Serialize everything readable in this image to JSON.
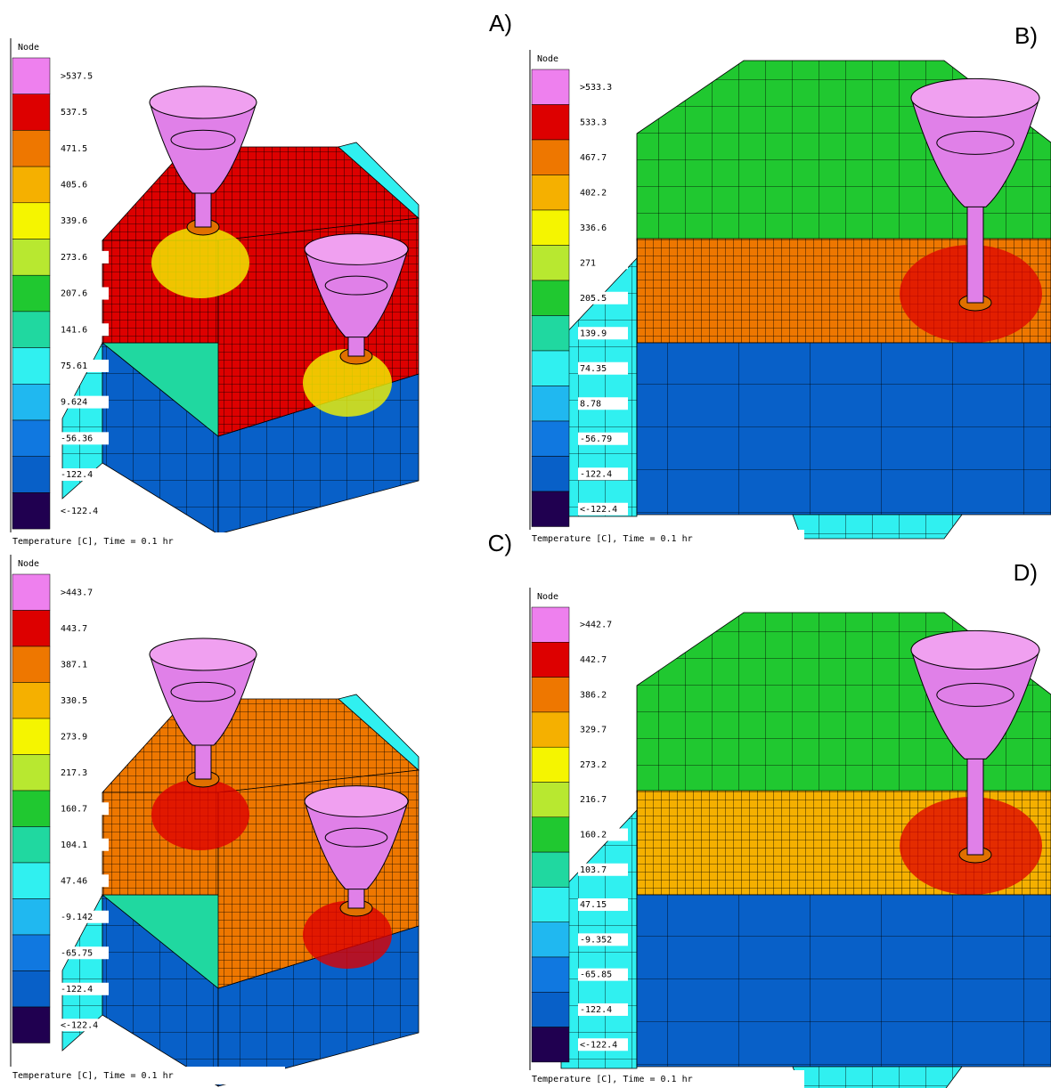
{
  "legend_colors": [
    "#ee80ee",
    "#dd0000",
    "#ee7700",
    "#f5b000",
    "#f5f500",
    "#b8e830",
    "#20c830",
    "#20d8a0",
    "#30f0f0",
    "#20b8f0",
    "#1078e0",
    "#0860c8",
    "#200050"
  ],
  "panels": [
    {
      "label": "A)",
      "legend_title": "Node",
      "footer": "Temperature [C], Time = 0.1 hr",
      "legend_labels": [
        ">537.5",
        "537.5",
        "471.5",
        "405.6",
        "339.6",
        "273.6",
        "207.6",
        "141.6",
        "75.61",
        "9.624",
        "-56.36",
        "-122.4",
        "<-122.4"
      ]
    },
    {
      "label": "B)",
      "legend_title": "Node",
      "footer": "Temperature [C], Time = 0.1 hr",
      "legend_labels": [
        ">533.3",
        "533.3",
        "467.7",
        "402.2",
        "336.6",
        "271",
        "205.5",
        "139.9",
        "74.35",
        "8.78",
        "-56.79",
        "-122.4",
        "<-122.4"
      ]
    },
    {
      "label": "C)",
      "legend_title": "Node",
      "footer": "Temperature [C], Time = 0.1 hr",
      "legend_labels": [
        ">443.7",
        "443.7",
        "387.1",
        "330.5",
        "273.9",
        "217.3",
        "160.7",
        "104.1",
        "47.46",
        "-9.142",
        "-65.75",
        "-122.4",
        "<-122.4"
      ]
    },
    {
      "label": "D)",
      "legend_title": "Node",
      "footer": "Temperature [C], Time = 0.1 hr",
      "legend_labels": [
        ">442.7",
        "442.7",
        "386.2",
        "329.7",
        "273.2",
        "216.7",
        "160.2",
        "103.7",
        "47.15",
        "-9.352",
        "-65.85",
        "-122.4",
        "<-122.4"
      ]
    }
  ]
}
